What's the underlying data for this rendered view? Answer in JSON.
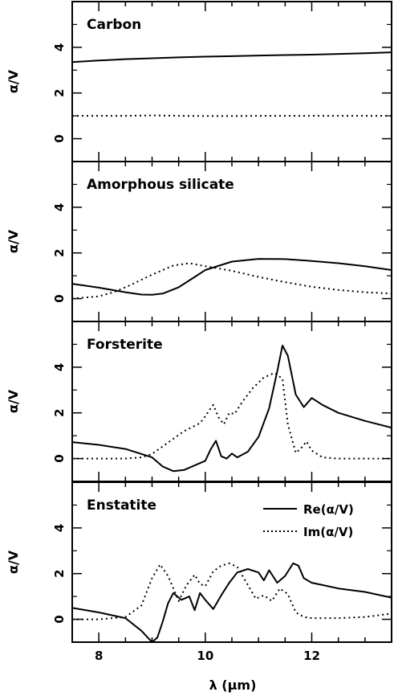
{
  "chart_data": {
    "type": "line",
    "xlabel": "λ (μm)",
    "ylabel": "α/V",
    "xlim": [
      7.5,
      13.5
    ],
    "ylim": [
      -1,
      6
    ],
    "xticks": [
      8,
      10,
      12
    ],
    "yticks": [
      0,
      2,
      4
    ],
    "legend": {
      "placement": "top-right of bottom panel",
      "entries": [
        {
          "label": "Re(α/V)",
          "style": "solid"
        },
        {
          "label": "Im(α/V)",
          "style": "dotted"
        }
      ]
    },
    "panels": [
      {
        "title": "Carbon",
        "series": [
          {
            "name": "Re(α/V)",
            "style": "solid",
            "x": [
              7.5,
              8.0,
              8.5,
              9.0,
              9.5,
              10.0,
              10.5,
              11.0,
              11.5,
              12.0,
              12.5,
              13.0,
              13.5
            ],
            "y": [
              3.35,
              3.42,
              3.48,
              3.52,
              3.56,
              3.59,
              3.61,
              3.64,
              3.66,
              3.68,
              3.71,
              3.74,
              3.78
            ]
          },
          {
            "name": "Im(α/V)",
            "style": "dotted",
            "x": [
              7.5,
              8.0,
              8.5,
              9.0,
              9.5,
              10.0,
              10.5,
              11.0,
              11.5,
              12.0,
              12.5,
              13.0,
              13.5
            ],
            "y": [
              1.0,
              1.0,
              1.0,
              1.02,
              1.0,
              0.99,
              0.99,
              1.0,
              1.0,
              1.0,
              1.0,
              1.0,
              1.0
            ]
          }
        ]
      },
      {
        "title": "Amorphous silicate",
        "series": [
          {
            "name": "Re(α/V)",
            "style": "solid",
            "x": [
              7.5,
              8.0,
              8.5,
              8.8,
              9.0,
              9.2,
              9.5,
              9.8,
              10.0,
              10.5,
              11.0,
              11.5,
              12.0,
              12.5,
              13.0,
              13.5
            ],
            "y": [
              0.65,
              0.48,
              0.28,
              0.18,
              0.17,
              0.22,
              0.5,
              0.95,
              1.25,
              1.62,
              1.74,
              1.73,
              1.65,
              1.55,
              1.42,
              1.25
            ]
          },
          {
            "name": "Im(α/V)",
            "style": "dotted",
            "x": [
              7.5,
              8.0,
              8.3,
              8.6,
              9.0,
              9.4,
              9.7,
              10.0,
              10.5,
              11.0,
              11.5,
              12.0,
              12.5,
              13.0,
              13.5
            ],
            "y": [
              0.0,
              0.1,
              0.3,
              0.6,
              1.05,
              1.45,
              1.55,
              1.42,
              1.22,
              0.95,
              0.72,
              0.52,
              0.38,
              0.28,
              0.22
            ]
          }
        ]
      },
      {
        "title": "Forsterite",
        "series": [
          {
            "name": "Re(α/V)",
            "style": "solid",
            "x": [
              7.5,
              8.0,
              8.5,
              9.0,
              9.2,
              9.4,
              9.6,
              9.8,
              10.0,
              10.1,
              10.2,
              10.3,
              10.4,
              10.5,
              10.6,
              10.8,
              11.0,
              11.2,
              11.35,
              11.45,
              11.55,
              11.7,
              11.85,
              12.0,
              12.2,
              12.5,
              13.0,
              13.5
            ],
            "y": [
              0.72,
              0.6,
              0.42,
              0.05,
              -0.35,
              -0.55,
              -0.5,
              -0.3,
              -0.1,
              0.4,
              0.78,
              0.1,
              0.0,
              0.22,
              0.05,
              0.3,
              0.95,
              2.2,
              3.8,
              4.95,
              4.5,
              2.8,
              2.25,
              2.65,
              2.35,
              2.0,
              1.65,
              1.35
            ]
          },
          {
            "name": "Im(α/V)",
            "style": "dotted",
            "x": [
              7.5,
              8.0,
              8.5,
              8.8,
              9.0,
              9.3,
              9.6,
              9.9,
              10.0,
              10.1,
              10.15,
              10.25,
              10.35,
              10.45,
              10.55,
              10.7,
              10.9,
              11.1,
              11.3,
              11.45,
              11.55,
              11.7,
              11.8,
              11.9,
              12.0,
              12.2,
              12.5,
              13.0,
              13.5
            ],
            "y": [
              0.0,
              0.0,
              0.0,
              0.05,
              0.2,
              0.7,
              1.2,
              1.55,
              1.85,
              2.2,
              2.35,
              1.8,
              1.5,
              2.0,
              1.95,
              2.5,
              3.1,
              3.55,
              3.75,
              3.5,
              1.5,
              0.25,
              0.45,
              0.75,
              0.35,
              0.05,
              0.0,
              0.0,
              0.0
            ]
          }
        ]
      },
      {
        "title": "Enstatite",
        "series": [
          {
            "name": "Re(α/V)",
            "style": "solid",
            "x": [
              7.5,
              8.0,
              8.5,
              8.8,
              9.0,
              9.1,
              9.2,
              9.3,
              9.4,
              9.55,
              9.7,
              9.8,
              9.9,
              10.0,
              10.15,
              10.3,
              10.45,
              10.6,
              10.8,
              11.0,
              11.1,
              11.2,
              11.35,
              11.5,
              11.65,
              11.75,
              11.85,
              12.0,
              12.2,
              12.5,
              13.0,
              13.5
            ],
            "y": [
              0.5,
              0.3,
              0.05,
              -0.5,
              -1.0,
              -0.8,
              -0.1,
              0.7,
              1.15,
              0.85,
              1.0,
              0.4,
              1.15,
              0.85,
              0.45,
              1.05,
              1.6,
              2.05,
              2.2,
              2.05,
              1.7,
              2.15,
              1.6,
              1.9,
              2.45,
              2.35,
              1.8,
              1.6,
              1.5,
              1.35,
              1.2,
              0.95
            ]
          },
          {
            "name": "Im(α/V)",
            "style": "dotted",
            "x": [
              7.5,
              8.0,
              8.5,
              8.8,
              9.0,
              9.15,
              9.3,
              9.5,
              9.65,
              9.8,
              9.9,
              10.0,
              10.15,
              10.3,
              10.45,
              10.6,
              10.8,
              10.95,
              11.1,
              11.25,
              11.4,
              11.55,
              11.7,
              11.85,
              12.0,
              12.5,
              13.0,
              13.5
            ],
            "y": [
              0.0,
              0.0,
              0.1,
              0.6,
              1.8,
              2.4,
              1.9,
              0.8,
              1.5,
              1.95,
              1.55,
              1.45,
              2.1,
              2.35,
              2.45,
              2.3,
              1.5,
              0.9,
              1.05,
              0.8,
              1.35,
              1.1,
              0.3,
              0.1,
              0.05,
              0.05,
              0.1,
              0.25
            ]
          }
        ]
      }
    ]
  }
}
